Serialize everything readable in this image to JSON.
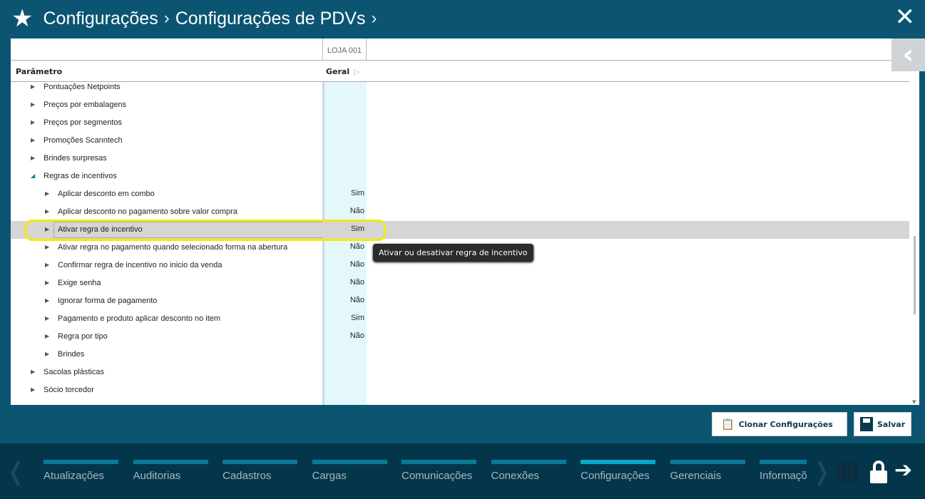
{
  "header": {
    "crumbs": [
      "Configurações",
      "Configurações de PDVs"
    ],
    "star_icon": "star-icon",
    "close_icon": "close-icon"
  },
  "table": {
    "store_column": "LOJA 001",
    "param_header": "Parâmetro",
    "general_header": "Geral",
    "rows": [
      {
        "label": "Pontuações Netpoints",
        "level": 0,
        "expanded": false,
        "value": ""
      },
      {
        "label": "Preços por embalagens",
        "level": 0,
        "expanded": false,
        "value": ""
      },
      {
        "label": "Preços por segmentos",
        "level": 0,
        "expanded": false,
        "value": ""
      },
      {
        "label": "Promoções Scanntech",
        "level": 0,
        "expanded": false,
        "value": ""
      },
      {
        "label": "Brindes surpresas",
        "level": 0,
        "expanded": false,
        "value": ""
      },
      {
        "label": "Regras de incentivos",
        "level": 0,
        "expanded": true,
        "value": ""
      },
      {
        "label": "Aplicar desconto em combo",
        "level": 1,
        "value": "Sim"
      },
      {
        "label": "Aplicar desconto no pagamento sobre valor compra",
        "level": 1,
        "value": "Não"
      },
      {
        "label": "Ativar regra de incentivo",
        "level": 1,
        "value": "Sim",
        "selected": true
      },
      {
        "label": "Ativar regra no pagamento quando selecionado forma na abertura",
        "level": 1,
        "value": "Não"
      },
      {
        "label": "Confirmar regra de incentivo no inicio da venda",
        "level": 1,
        "value": "Não"
      },
      {
        "label": "Exige senha",
        "level": 1,
        "value": "Não"
      },
      {
        "label": "Ignorar forma de pagamento",
        "level": 1,
        "value": "Não"
      },
      {
        "label": "Pagamento e produto aplicar desconto no item",
        "level": 1,
        "value": "Sim"
      },
      {
        "label": "Regra por tipo",
        "level": 1,
        "value": "Não"
      },
      {
        "label": "Brindes",
        "level": 1,
        "value": ""
      },
      {
        "label": "Sacolas plásticas",
        "level": 0,
        "expanded": false,
        "value": ""
      },
      {
        "label": "Sócio torcedor",
        "level": 0,
        "expanded": false,
        "value": ""
      }
    ]
  },
  "tooltip": "Ativar ou desativar regra de incentivo",
  "buttons": {
    "clone": "Clonar Configurações",
    "save": "Salvar"
  },
  "nav": {
    "items": [
      "Atualizações",
      "Auditorias",
      "Cadastros",
      "Cargas",
      "Comunicações",
      "Conexões",
      "Configurações",
      "Gerenciais",
      "Informações"
    ],
    "active": "Configurações"
  },
  "colors": {
    "header_bg": "#0b5572",
    "nav_bg": "#04364b",
    "highlight": "#f2ea00",
    "active_bar": "#0aa6c9"
  }
}
